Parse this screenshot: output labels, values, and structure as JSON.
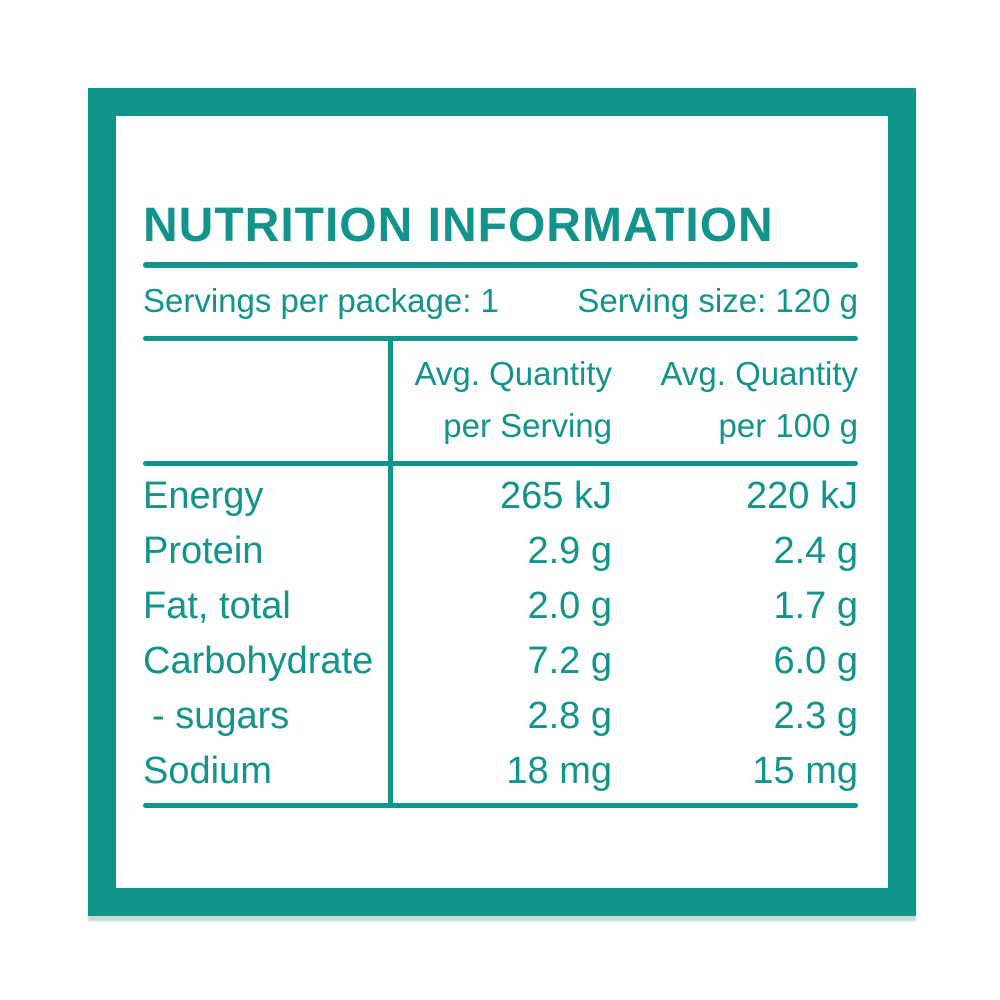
{
  "colors": {
    "teal": "#12938B",
    "frame_border": "#0F948B",
    "background": "#FFFFFF"
  },
  "label": {
    "title": "NUTRITION INFORMATION",
    "servings_per_package": "Servings per package: 1",
    "serving_size": "Serving size: 120 g",
    "table": {
      "columns": [
        {
          "line1": "Avg. Quantity",
          "line2": "per Serving"
        },
        {
          "line1": "Avg. Quantity",
          "line2": "per 100 g"
        }
      ],
      "rows": [
        {
          "nutrient": "Energy",
          "per_serving": "265 kJ",
          "per_100g": "220 kJ"
        },
        {
          "nutrient": "Protein",
          "per_serving": "2.9 g",
          "per_100g": "2.4 g"
        },
        {
          "nutrient": "Fat, total",
          "per_serving": "2.0 g",
          "per_100g": "1.7 g"
        },
        {
          "nutrient": "Carbohydrate",
          "per_serving": "7.2 g",
          "per_100g": "6.0 g"
        },
        {
          "nutrient": "- sugars",
          "per_serving": "2.8 g",
          "per_100g": "2.3 g"
        },
        {
          "nutrient": "Sodium",
          "per_serving": "18 mg",
          "per_100g": "15 mg"
        }
      ]
    }
  }
}
